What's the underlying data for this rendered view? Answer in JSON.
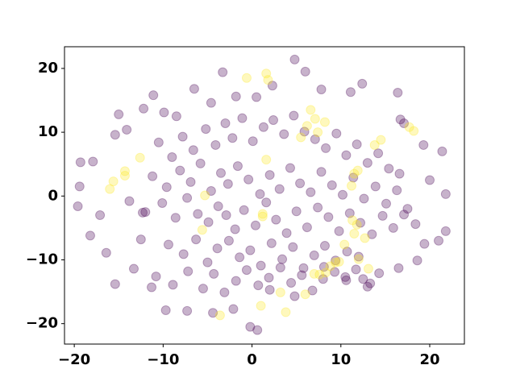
{
  "chart_data": {
    "type": "scatter",
    "xlim": [
      -21.1,
      23.9
    ],
    "ylim": [
      -23.2,
      23.4
    ],
    "xticks": [
      {
        "value": -20,
        "label": "−20"
      },
      {
        "value": -10,
        "label": "−10"
      },
      0,
      10,
      20
    ],
    "yticks": [
      {
        "value": -20,
        "label": "−20"
      },
      {
        "value": -10,
        "label": "−10"
      },
      0,
      10,
      20
    ],
    "opacity": 0.3,
    "series": [
      {
        "color": "#440154",
        "x": [
          -19.6,
          -19.4,
          -19.3,
          -17.9,
          -18.2,
          -17.1,
          -16.4,
          -15.4,
          -15.0,
          -15.4,
          -14.1,
          -12.2,
          -11.1,
          -9.9,
          -8.5,
          -6.5,
          -4.6,
          -3.3,
          -1.8,
          0.5,
          2.3,
          4.8,
          6.0,
          7.8,
          11.1,
          12.4,
          16.4,
          16.7,
          17.1,
          19.3,
          20.0,
          21.4,
          21.8,
          21.8,
          21.0,
          19.4,
          18.6,
          16.5,
          13.3,
          12.5,
          10.6,
          8.1,
          4.8,
          2.0,
          0.6,
          -0.2,
          -2.1,
          -4.4,
          -7.3,
          -9.7,
          -11.3,
          -13.3,
          -12.5,
          -12.3,
          -10.5,
          -9.0,
          -7.8,
          -6.6,
          -5.2,
          -4.1,
          -3.0,
          -2.2,
          -1.1,
          0.1,
          1.3,
          2.4,
          3.6,
          4.7,
          5.9,
          7.1,
          8.3,
          9.5,
          10.6,
          11.8,
          13.0,
          14.2,
          15.4,
          16.6,
          -11.2,
          -9.6,
          -8.1,
          -6.9,
          -5.8,
          -4.6,
          -3.5,
          -2.7,
          -1.6,
          -0.4,
          0.9,
          2.0,
          3.1,
          4.3,
          5.4,
          6.6,
          7.8,
          9.0,
          10.2,
          11.4,
          12.6,
          13.9,
          15.1,
          16.3,
          17.5,
          -13.8,
          -12.0,
          -10.1,
          -8.6,
          -7.3,
          -6.1,
          -4.9,
          -3.8,
          -2.9,
          -1.9,
          -0.9,
          0.4,
          1.6,
          2.7,
          3.9,
          5.0,
          6.2,
          7.4,
          8.6,
          9.8,
          11.0,
          12.2,
          13.5,
          14.7,
          15.9,
          17.1,
          18.4,
          -9.4,
          -7.7,
          -6.3,
          -5.0,
          -3.9,
          -2.6,
          -1.4,
          -0.2,
          1.0,
          2.2,
          3.4,
          4.6,
          5.8,
          7.0,
          8.2,
          9.4,
          10.7,
          12.0,
          -10.8,
          -8.9,
          -7.2,
          -5.5,
          -4.3,
          -3.1,
          -1.8,
          -0.6,
          0.7,
          1.9,
          3.2,
          4.4,
          5.6,
          6.8,
          8.0,
          9.3,
          10.5,
          11.7,
          13.0,
          14.3
        ],
        "values": [
          -1.6,
          1.5,
          5.3,
          5.4,
          -6.2,
          -3.0,
          -8.9,
          -13.8,
          12.8,
          9.6,
          10.4,
          13.7,
          15.8,
          13.1,
          12.5,
          16.8,
          14.6,
          19.4,
          15.6,
          15.5,
          17.3,
          21.4,
          19.5,
          16.7,
          16.3,
          17.6,
          16.2,
          12.0,
          11.4,
          8.0,
          2.5,
          7.0,
          0.3,
          -5.5,
          -7.0,
          -7.5,
          -10.1,
          -11.3,
          -13.7,
          -13.0,
          -13.2,
          -11.1,
          -15.7,
          -14.7,
          -21.0,
          -20.5,
          -17.7,
          -18.3,
          -18.0,
          -17.9,
          -14.3,
          -11.4,
          -6.8,
          -2.6,
          8.4,
          6.1,
          9.3,
          7.2,
          10.5,
          8.0,
          11.4,
          9.1,
          12.2,
          8.6,
          10.8,
          11.9,
          9.7,
          12.6,
          10.1,
          8.9,
          7.5,
          9.8,
          6.4,
          8.1,
          5.2,
          6.7,
          4.3,
          3.5,
          3.1,
          1.4,
          4.0,
          2.2,
          5.1,
          0.8,
          3.6,
          1.9,
          4.7,
          2.6,
          0.3,
          3.3,
          1.1,
          4.4,
          2.0,
          0.6,
          3.8,
          1.7,
          0.2,
          2.9,
          -0.4,
          1.5,
          -1.2,
          0.9,
          -2.0,
          -0.8,
          -2.5,
          -1.1,
          -3.4,
          -0.3,
          -2.8,
          -4.1,
          -1.6,
          -3.0,
          -5.2,
          -2.2,
          -4.6,
          -1.0,
          -3.7,
          -5.8,
          -2.4,
          -4.9,
          -1.8,
          -3.3,
          -5.5,
          -2.7,
          -4.2,
          -6.0,
          -3.1,
          -5.0,
          -2.9,
          -4.4,
          -7.6,
          -9.1,
          -6.8,
          -10.4,
          -8.2,
          -7.0,
          -9.6,
          -8.5,
          -10.9,
          -7.4,
          -9.9,
          -8.0,
          -11.3,
          -9.3,
          -7.8,
          -10.1,
          -8.7,
          -9.5,
          -12.6,
          -13.9,
          -11.8,
          -14.5,
          -12.2,
          -15.1,
          -13.3,
          -11.6,
          -14.0,
          -12.8,
          -11.2,
          -13.6,
          -12.4,
          -14.8,
          -13.0,
          -11.9,
          -12.7,
          -11.5,
          -14.2,
          -12.1
        ]
      },
      {
        "color": "#fde725",
        "x": [
          -3.6,
          1.0,
          3.8,
          -0.6,
          1.6,
          1.8,
          6.6,
          7.1,
          6.2,
          5.5,
          7.4,
          8.2,
          14.5,
          13.8,
          17.7,
          18.2,
          -14.3,
          -14.3,
          -15.6,
          -16.0,
          -12.6,
          11.5,
          11.9,
          11.2,
          11.3,
          11.8,
          11.5,
          12.7,
          10.4,
          9.4,
          8.8,
          9.8,
          8.3,
          7.6,
          12.0,
          13.1,
          6.0,
          3.2,
          1.6,
          1.2,
          -5.6,
          -5.3,
          1.2,
          7.0
        ],
        "values": [
          -18.7,
          -17.2,
          -18.2,
          18.5,
          19.2,
          18.2,
          13.5,
          12.1,
          11.0,
          9.2,
          10.0,
          11.6,
          8.8,
          8.0,
          10.8,
          10.2,
          3.2,
          3.9,
          2.3,
          1.1,
          6.0,
          3.5,
          4.0,
          1.6,
          -3.8,
          -4.5,
          -5.9,
          -6.6,
          -7.6,
          -10.4,
          -11.0,
          -10.3,
          -12.0,
          -12.3,
          -9.9,
          -11.4,
          -15.4,
          -15.1,
          5.7,
          -3.2,
          -5.3,
          0.1,
          -2.8,
          -12.2
        ]
      }
    ]
  }
}
